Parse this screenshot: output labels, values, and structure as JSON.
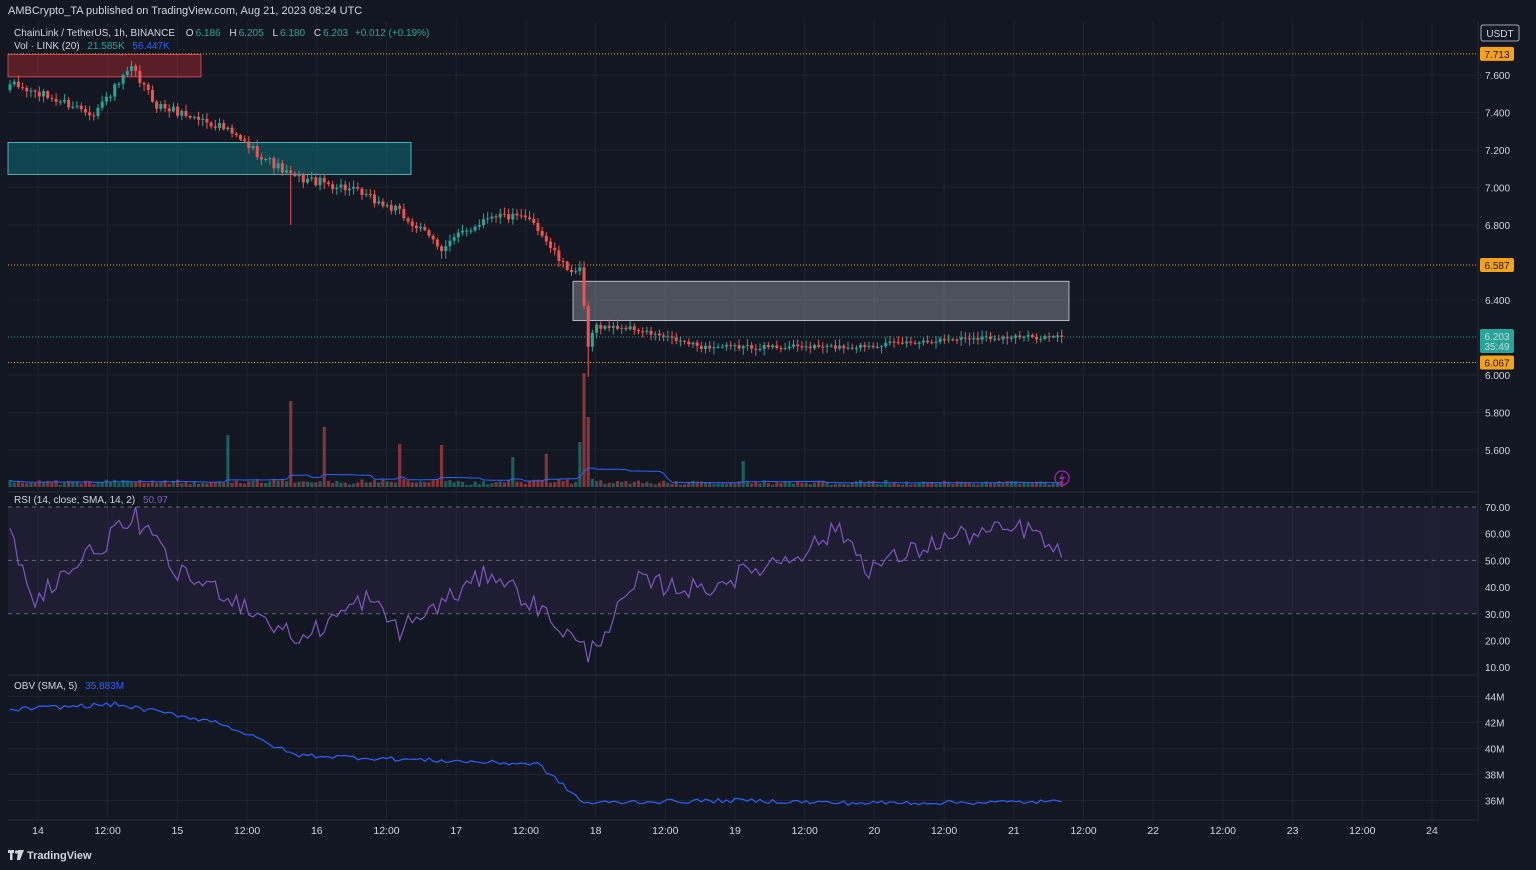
{
  "header": {
    "published": "AMBCrypto_TA published on TradingView.com, Aug 21, 2023 08:24 UTC"
  },
  "legend": {
    "symbol": "ChainLink / TetherUS, 1h, BINANCE",
    "o_label": "O",
    "o": "6.186",
    "h_label": "H",
    "h": "6.205",
    "l_label": "L",
    "l": "6.180",
    "c_label": "C",
    "c": "6.203",
    "change": "+0.012 (+0.19%)",
    "vol_label": "Vol · LINK (20)",
    "vol": "21.585K",
    "vol_ma": "56.447K",
    "rsi_label": "RSI (14, close, SMA, 14, 2)",
    "rsi": "50.97",
    "obv_label": "OBV (SMA, 5)",
    "obv": "35.883M"
  },
  "price_axis": {
    "currency": "USDT",
    "ticks": [
      "7.600",
      "7.400",
      "7.200",
      "7.000",
      "6.800",
      "6.400",
      "6.000",
      "5.800",
      "5.600"
    ],
    "levels": [
      {
        "label": "7.713",
        "value": 7.713
      },
      {
        "label": "6.587",
        "value": 6.587
      },
      {
        "label": "6.067",
        "value": 6.067
      }
    ],
    "last_price": "6.203",
    "countdown": "35:49"
  },
  "rsi_axis": {
    "ticks": [
      "70.00",
      "60.00",
      "50.00",
      "40.00",
      "30.00",
      "20.00",
      "10.00"
    ]
  },
  "obv_axis": {
    "ticks": [
      "44M",
      "42M",
      "40M",
      "38M",
      "36M"
    ]
  },
  "time_axis": {
    "labels": [
      "14",
      "12:00",
      "15",
      "12:00",
      "16",
      "12:00",
      "17",
      "12:00",
      "18",
      "12:00",
      "19",
      "12:00",
      "20",
      "12:00",
      "21",
      "12:00",
      "22",
      "12:00",
      "23",
      "12:00",
      "24"
    ]
  },
  "zones": [
    {
      "name": "bearish-order-block",
      "x0": 0,
      "x1": 46,
      "p0": 7.59,
      "p1": 7.71
    },
    {
      "name": "bullish-breaker",
      "x0": 0,
      "x1": 97,
      "p0": 7.07,
      "p1": 7.24
    },
    {
      "name": "supply-zone",
      "x0": 135,
      "x1": 252,
      "p0": 6.29,
      "p1": 6.5
    }
  ],
  "colors": {
    "bg": "#131722",
    "up": "#26a69a",
    "down": "#ef5350",
    "vol_ma": "#2962ff",
    "rsi": "#7e57c2",
    "obv": "#2962ff",
    "level": "#f7a21b"
  },
  "chart_data": {
    "type": "candlestick",
    "symbol": "ChainLink / TetherUS",
    "timeframe": "1h",
    "bars": 252,
    "key_points": [
      {
        "bar": 0,
        "close": 7.55
      },
      {
        "bar": 20,
        "close": 7.4
      },
      {
        "bar": 29,
        "close": 7.63
      },
      {
        "bar": 35,
        "close": 7.44
      },
      {
        "bar": 50,
        "close": 7.33
      },
      {
        "bar": 67,
        "close": 7.06
      },
      {
        "bar": 80,
        "close": 7.0
      },
      {
        "bar": 92,
        "close": 6.88
      },
      {
        "bar": 103,
        "close": 6.68
      },
      {
        "bar": 115,
        "close": 6.86
      },
      {
        "bar": 125,
        "close": 6.82
      },
      {
        "bar": 132,
        "close": 6.58
      },
      {
        "bar": 136,
        "close": 6.55
      },
      {
        "bar": 138,
        "close": 6.15
      },
      {
        "bar": 140,
        "close": 6.26
      },
      {
        "bar": 148,
        "close": 6.25
      },
      {
        "bar": 165,
        "close": 6.15
      },
      {
        "bar": 200,
        "close": 6.15
      },
      {
        "bar": 230,
        "close": 6.2
      },
      {
        "bar": 251,
        "close": 6.203
      }
    ],
    "rsi_key_points": [
      {
        "bar": 0,
        "v": 62
      },
      {
        "bar": 5,
        "v": 35
      },
      {
        "bar": 30,
        "v": 66
      },
      {
        "bar": 40,
        "v": 45
      },
      {
        "bar": 50,
        "v": 39
      },
      {
        "bar": 69,
        "v": 20
      },
      {
        "bar": 85,
        "v": 36
      },
      {
        "bar": 93,
        "v": 24
      },
      {
        "bar": 115,
        "v": 46
      },
      {
        "bar": 130,
        "v": 27
      },
      {
        "bar": 138,
        "v": 15
      },
      {
        "bar": 150,
        "v": 42
      },
      {
        "bar": 165,
        "v": 39
      },
      {
        "bar": 190,
        "v": 54
      },
      {
        "bar": 198,
        "v": 62
      },
      {
        "bar": 205,
        "v": 47
      },
      {
        "bar": 225,
        "v": 59
      },
      {
        "bar": 243,
        "v": 62
      },
      {
        "bar": 251,
        "v": 51
      }
    ],
    "obv_key_points": [
      {
        "bar": 0,
        "v": 43.0
      },
      {
        "bar": 25,
        "v": 43.4
      },
      {
        "bar": 50,
        "v": 42.0
      },
      {
        "bar": 68,
        "v": 39.5
      },
      {
        "bar": 100,
        "v": 39.1
      },
      {
        "bar": 126,
        "v": 38.8
      },
      {
        "bar": 137,
        "v": 35.8
      },
      {
        "bar": 150,
        "v": 35.9
      },
      {
        "bar": 175,
        "v": 36.0
      },
      {
        "bar": 200,
        "v": 35.8
      },
      {
        "bar": 251,
        "v": 35.9
      }
    ]
  }
}
